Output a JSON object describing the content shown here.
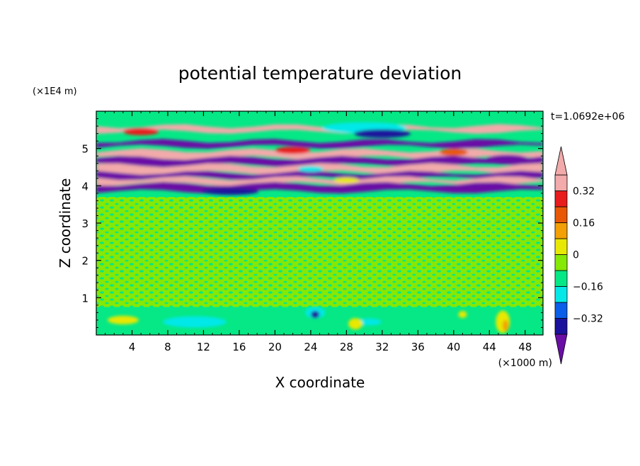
{
  "chart_data": {
    "type": "heatmap",
    "title": "potential temperature deviation",
    "xlabel": "X coordinate",
    "ylabel": "Z coordinate",
    "x_unit": "(×1000 m)",
    "y_unit": "(×1E4 m)",
    "time_label": "t=1.0692e+06",
    "xlim": [
      0,
      50
    ],
    "ylim": [
      0,
      6
    ],
    "x_ticks": [
      4,
      8,
      12,
      16,
      20,
      24,
      28,
      32,
      36,
      40,
      44,
      48
    ],
    "y_ticks": [
      1,
      2,
      3,
      4,
      5
    ],
    "colorbar": {
      "levels": [
        -0.4,
        -0.32,
        -0.24,
        -0.16,
        -0.08,
        0,
        0.08,
        0.16,
        0.24,
        0.32,
        0.4
      ],
      "labels": [
        "0.32",
        "0.16",
        "0",
        "-0.16",
        "-0.32"
      ],
      "label_values": [
        0.32,
        0.16,
        0,
        -0.16,
        -0.32
      ],
      "colors_low_to_high": [
        "#6a0fa6",
        "#1a129c",
        "#0b5ee8",
        "#05e8e8",
        "#05e885",
        "#85e805",
        "#e8e805",
        "#f2a005",
        "#e85805",
        "#e81c1c",
        "#f2aaaa"
      ],
      "extend": "both"
    },
    "bands": [
      {
        "z": [
          5.45,
          5.6
        ],
        "color": "#f2aaaa"
      },
      {
        "z": [
          5.05,
          5.2
        ],
        "color": "#6a0fa6"
      },
      {
        "z": [
          4.75,
          4.95
        ],
        "color": "#f2aaaa"
      },
      {
        "z": [
          4.55,
          4.75
        ],
        "color": "#6a0fa6"
      },
      {
        "z": [
          4.35,
          4.55
        ],
        "color": "#f2aaaa"
      },
      {
        "z": [
          4.2,
          4.35
        ],
        "color": "#6a0fa6"
      },
      {
        "z": [
          4.05,
          4.2
        ],
        "color": "#f2aaaa"
      },
      {
        "z": [
          3.85,
          4.05
        ],
        "color": "#6a0fa6"
      }
    ]
  }
}
